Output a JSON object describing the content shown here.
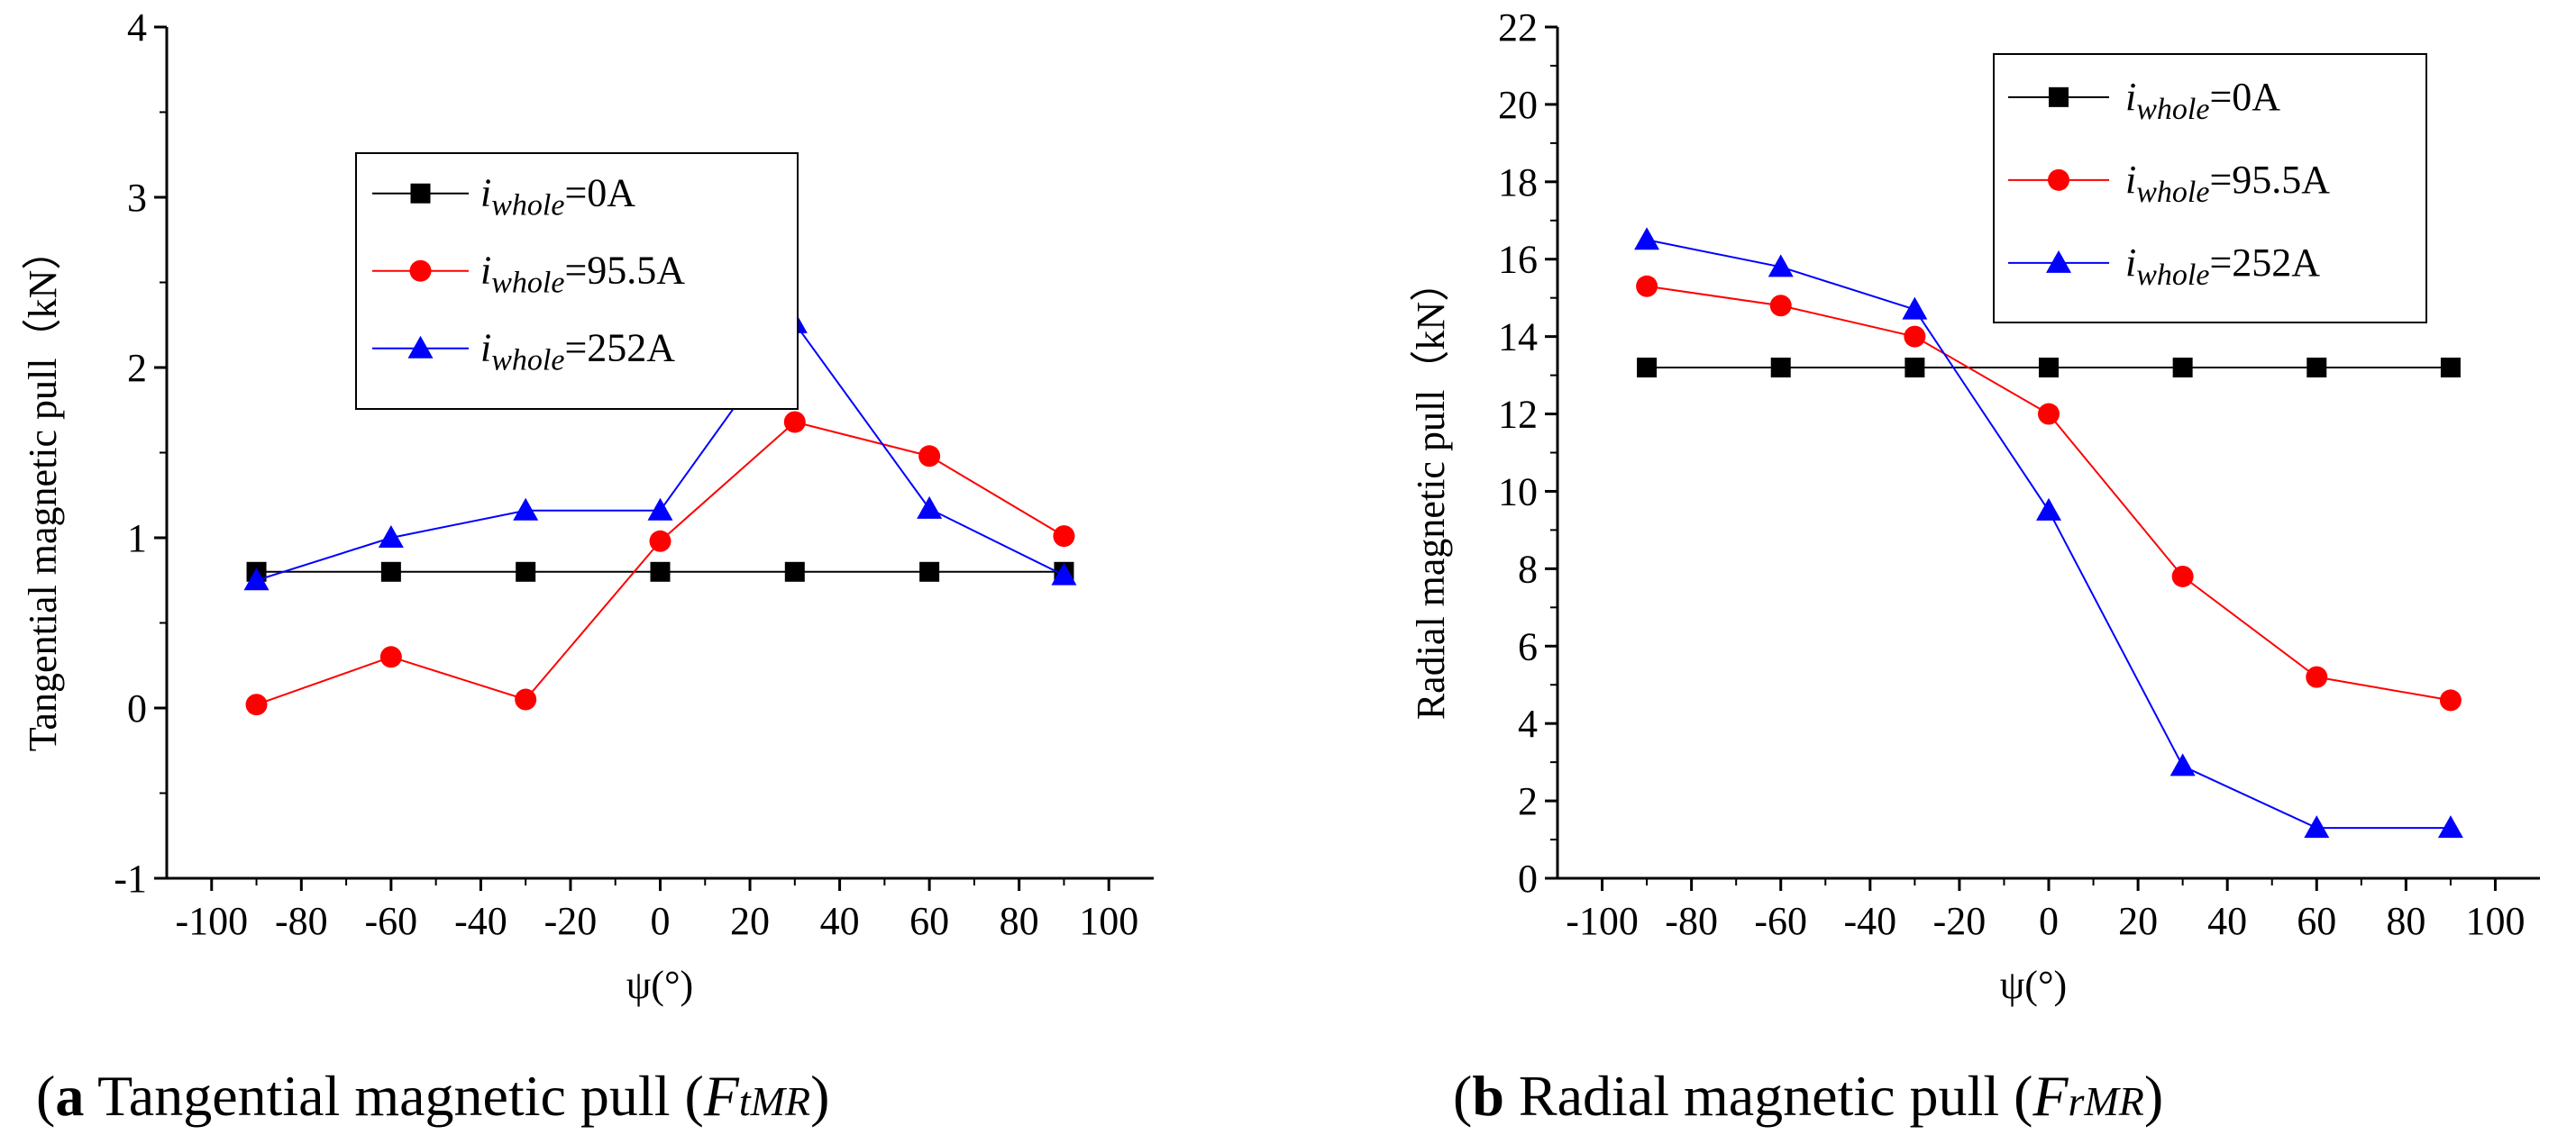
{
  "chart_data": [
    {
      "type": "line",
      "x": [
        -90,
        -60,
        -30,
        0,
        30,
        60,
        90
      ],
      "series": [
        {
          "name": "i_whole=0A",
          "legend_i": "i",
          "legend_sub": "whole",
          "legend_value": "=0A",
          "color": "#000000",
          "marker": "square",
          "values": [
            0.8,
            0.8,
            0.8,
            0.8,
            0.8,
            0.8,
            0.8
          ]
        },
        {
          "name": "i_whole=95.5A",
          "legend_i": "i",
          "legend_sub": "whole",
          "legend_value": "=95.5A",
          "color": "#ff0000",
          "marker": "circle",
          "values": [
            0.02,
            0.3,
            0.05,
            0.98,
            1.68,
            1.48,
            1.01
          ]
        },
        {
          "name": "i_whole=252A",
          "legend_i": "i",
          "legend_sub": "whole",
          "legend_value": "=252A",
          "color": "#0000ff",
          "marker": "triangle",
          "values": [
            0.75,
            1.0,
            1.16,
            1.16,
            2.26,
            1.17,
            0.78
          ]
        }
      ],
      "xlim": [
        -110,
        110
      ],
      "ylim": [
        -1,
        4
      ],
      "xticks": [
        -100,
        -80,
        -60,
        -40,
        -20,
        0,
        20,
        40,
        60,
        80,
        100
      ],
      "yticks": [
        -1,
        0,
        1,
        2,
        3,
        4
      ],
      "xtick_labels": [
        "-100",
        "-80",
        "-60",
        "-40",
        "-20",
        "0",
        "20",
        "40",
        "60",
        "80",
        "100"
      ],
      "ytick_labels": [
        "-1",
        "0",
        "1",
        "2",
        "3",
        "4"
      ],
      "xlabel": "ψ(°)",
      "ylabel": "Tangential magnetic pull（kN）",
      "caption": {
        "letter": "a",
        "text": " Tangential magnetic pull (",
        "symbol": "F",
        "sub": "tMR",
        "close": ")"
      }
    },
    {
      "type": "line",
      "x": [
        -90,
        -60,
        -30,
        0,
        30,
        60,
        90
      ],
      "series": [
        {
          "name": "i_whole=0A",
          "legend_i": "i",
          "legend_sub": "whole",
          "legend_value": "=0A",
          "color": "#000000",
          "marker": "square",
          "values": [
            13.2,
            13.2,
            13.2,
            13.2,
            13.2,
            13.2,
            13.2
          ]
        },
        {
          "name": "i_whole=95.5A",
          "legend_i": "i",
          "legend_sub": "whole",
          "legend_value": "=95.5A",
          "color": "#ff0000",
          "marker": "circle",
          "values": [
            15.3,
            14.8,
            14.0,
            12.0,
            7.8,
            5.2,
            4.6
          ]
        },
        {
          "name": "i_whole=252A",
          "legend_i": "i",
          "legend_sub": "whole",
          "legend_value": "=252A",
          "color": "#0000ff",
          "marker": "triangle",
          "values": [
            16.5,
            15.8,
            14.7,
            9.5,
            2.9,
            1.3,
            1.3
          ]
        }
      ],
      "xlim": [
        -110,
        110
      ],
      "ylim": [
        0,
        22
      ],
      "xticks": [
        -100,
        -80,
        -60,
        -40,
        -20,
        0,
        20,
        40,
        60,
        80,
        100
      ],
      "yticks": [
        0,
        2,
        4,
        6,
        8,
        10,
        12,
        14,
        16,
        18,
        20,
        22
      ],
      "xtick_labels": [
        "-100",
        "-80",
        "-60",
        "-40",
        "-20",
        "0",
        "20",
        "40",
        "60",
        "80",
        "100"
      ],
      "ytick_labels": [
        "0",
        "2",
        "4",
        "6",
        "8",
        "10",
        "12",
        "14",
        "16",
        "18",
        "20",
        "22"
      ],
      "xlabel": "ψ(°)",
      "ylabel": "Radial magnetic pull（kN）",
      "caption": {
        "letter": "b",
        "text": " Radial magnetic pull (",
        "symbol": "F",
        "sub": "rMR",
        "close": ")"
      }
    }
  ]
}
